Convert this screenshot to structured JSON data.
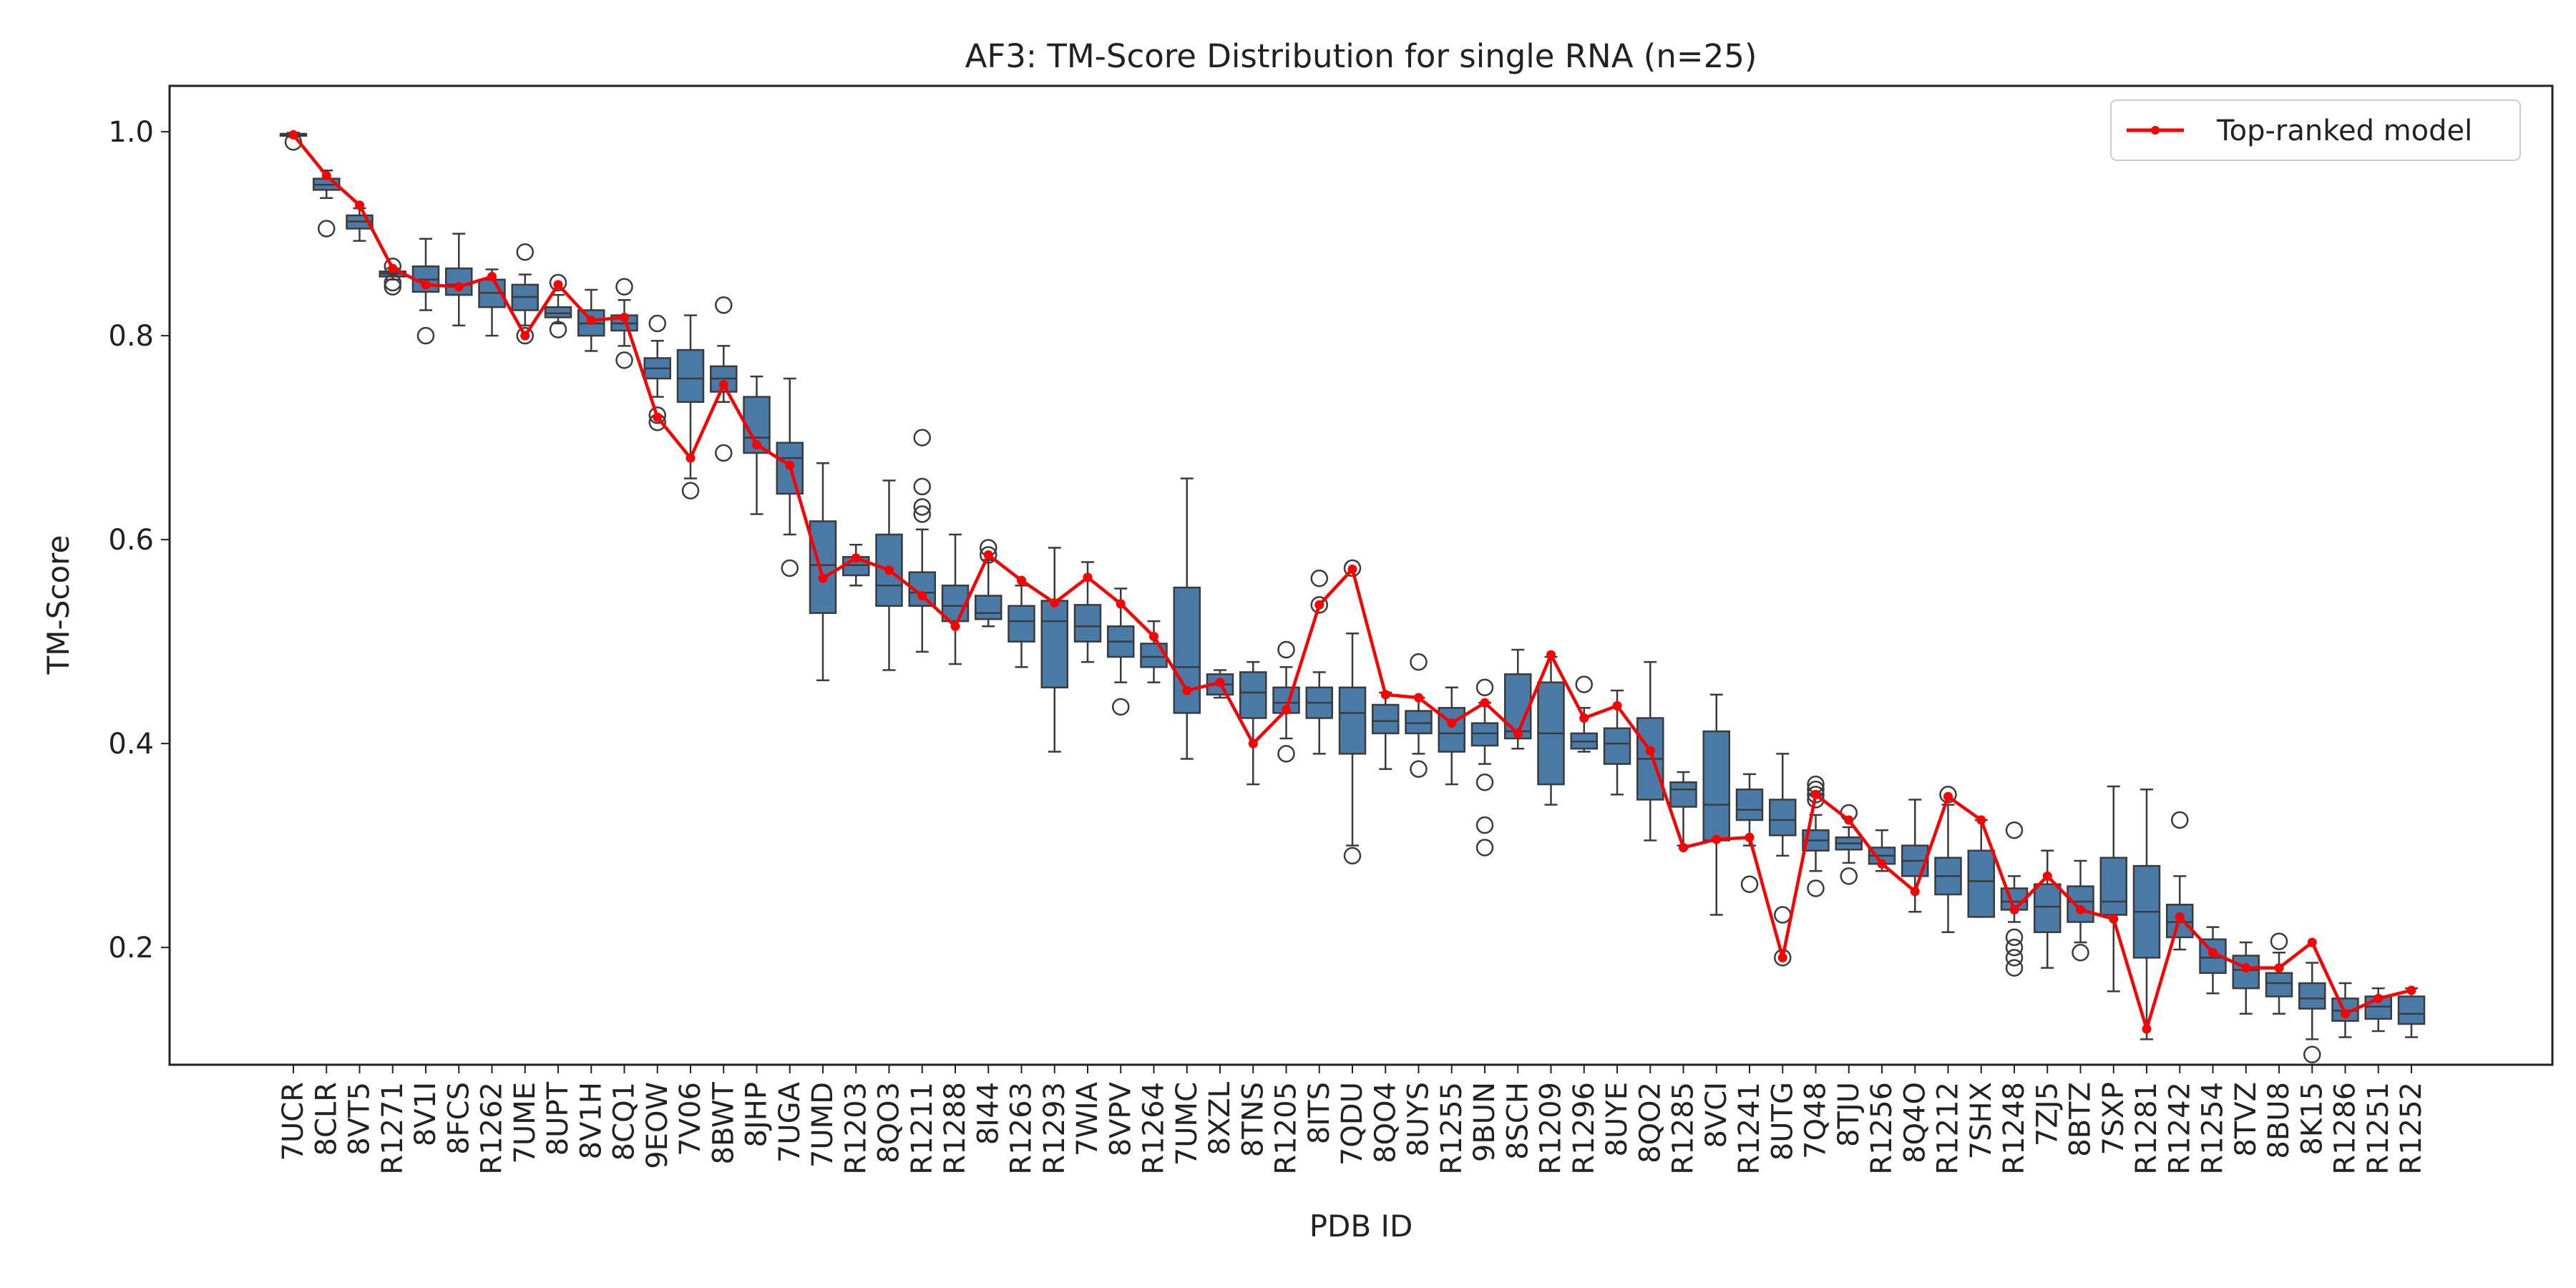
{
  "chart_data": {
    "type": "box",
    "title": "AF3: TM-Score Distribution for single RNA (n=25)",
    "xlabel": "PDB ID",
    "ylabel": "TM-Score",
    "ylim": [
      0.085,
      1.045
    ],
    "yticks": [
      0.2,
      0.4,
      0.6,
      0.8,
      1.0
    ],
    "ytick_labels": [
      "0.2",
      "0.4",
      "0.6",
      "0.8",
      "1.0"
    ],
    "grid": false,
    "legend": {
      "position": "top-right",
      "entries": [
        "Top-ranked model"
      ]
    },
    "colors": {
      "box": "#4a7ba7",
      "box_edge": "#3b3b3b",
      "line": "#ff0000",
      "frame": "#222222"
    },
    "categories": [
      "7UCR",
      "8CLR",
      "8VT5",
      "R1271",
      "8V1I",
      "8FCS",
      "R1262",
      "7UME",
      "8UPT",
      "8V1H",
      "8CQ1",
      "9EOW",
      "7V06",
      "8BWT",
      "8JHP",
      "7UGA",
      "7UMD",
      "R1203",
      "8QO3",
      "R1211",
      "R1288",
      "8I44",
      "R1263",
      "R1293",
      "7WIA",
      "8VPV",
      "R1264",
      "7UMC",
      "8XZL",
      "8TNS",
      "R1205",
      "8ITS",
      "7QDU",
      "8QO4",
      "8UYS",
      "R1255",
      "9BUN",
      "8SCH",
      "R1209",
      "R1296",
      "8UYE",
      "8QO2",
      "R1285",
      "8VCI",
      "R1241",
      "8UTG",
      "7Q48",
      "8TJU",
      "R1256",
      "8Q4O",
      "R1212",
      "7SHX",
      "R1248",
      "7ZJ5",
      "8BTZ",
      "7SXP",
      "R1281",
      "R1242",
      "R1254",
      "8TVZ",
      "8BU8",
      "8K15",
      "R1286",
      "R1251",
      "R1252"
    ],
    "boxes": [
      {
        "whislo": 0.995,
        "q1": 0.996,
        "med": 0.997,
        "q3": 0.998,
        "whishi": 0.999,
        "fliers": [
          0.99
        ]
      },
      {
        "whislo": 0.935,
        "q1": 0.943,
        "med": 0.948,
        "q3": 0.954,
        "whishi": 0.962,
        "fliers": [
          0.905
        ]
      },
      {
        "whislo": 0.893,
        "q1": 0.905,
        "med": 0.912,
        "q3": 0.918,
        "whishi": 0.925,
        "fliers": []
      },
      {
        "whislo": 0.855,
        "q1": 0.858,
        "med": 0.861,
        "q3": 0.863,
        "whishi": 0.866,
        "fliers": [
          0.868,
          0.852,
          0.848
        ]
      },
      {
        "whislo": 0.825,
        "q1": 0.843,
        "med": 0.855,
        "q3": 0.868,
        "whishi": 0.895,
        "fliers": [
          0.8
        ]
      },
      {
        "whislo": 0.81,
        "q1": 0.84,
        "med": 0.85,
        "q3": 0.866,
        "whishi": 0.9,
        "fliers": []
      },
      {
        "whislo": 0.8,
        "q1": 0.828,
        "med": 0.842,
        "q3": 0.855,
        "whishi": 0.865,
        "fliers": []
      },
      {
        "whislo": 0.81,
        "q1": 0.825,
        "med": 0.838,
        "q3": 0.85,
        "whishi": 0.86,
        "fliers": [
          0.882,
          0.8
        ]
      },
      {
        "whislo": 0.812,
        "q1": 0.818,
        "med": 0.822,
        "q3": 0.828,
        "whishi": 0.84,
        "fliers": [
          0.852,
          0.806
        ]
      },
      {
        "whislo": 0.785,
        "q1": 0.8,
        "med": 0.812,
        "q3": 0.825,
        "whishi": 0.845,
        "fliers": []
      },
      {
        "whislo": 0.79,
        "q1": 0.805,
        "med": 0.812,
        "q3": 0.82,
        "whishi": 0.835,
        "fliers": [
          0.848,
          0.776
        ]
      },
      {
        "whislo": 0.74,
        "q1": 0.758,
        "med": 0.768,
        "q3": 0.778,
        "whishi": 0.795,
        "fliers": [
          0.812,
          0.722,
          0.715
        ]
      },
      {
        "whislo": 0.66,
        "q1": 0.735,
        "med": 0.758,
        "q3": 0.786,
        "whishi": 0.82,
        "fliers": [
          0.648
        ]
      },
      {
        "whislo": 0.735,
        "q1": 0.745,
        "med": 0.758,
        "q3": 0.77,
        "whishi": 0.79,
        "fliers": [
          0.83,
          0.685
        ]
      },
      {
        "whislo": 0.625,
        "q1": 0.685,
        "med": 0.7,
        "q3": 0.74,
        "whishi": 0.76,
        "fliers": []
      },
      {
        "whislo": 0.605,
        "q1": 0.645,
        "med": 0.68,
        "q3": 0.695,
        "whishi": 0.758,
        "fliers": [
          0.572
        ]
      },
      {
        "whislo": 0.462,
        "q1": 0.528,
        "med": 0.575,
        "q3": 0.618,
        "whishi": 0.675,
        "fliers": []
      },
      {
        "whislo": 0.555,
        "q1": 0.565,
        "med": 0.575,
        "q3": 0.583,
        "whishi": 0.595,
        "fliers": []
      },
      {
        "whislo": 0.472,
        "q1": 0.535,
        "med": 0.555,
        "q3": 0.605,
        "whishi": 0.658,
        "fliers": []
      },
      {
        "whislo": 0.49,
        "q1": 0.535,
        "med": 0.548,
        "q3": 0.568,
        "whishi": 0.61,
        "fliers": [
          0.7,
          0.652,
          0.632,
          0.625
        ]
      },
      {
        "whislo": 0.478,
        "q1": 0.52,
        "med": 0.535,
        "q3": 0.555,
        "whishi": 0.605,
        "fliers": []
      },
      {
        "whislo": 0.515,
        "q1": 0.522,
        "med": 0.528,
        "q3": 0.545,
        "whishi": 0.58,
        "fliers": [
          0.592,
          0.585
        ]
      },
      {
        "whislo": 0.475,
        "q1": 0.5,
        "med": 0.52,
        "q3": 0.535,
        "whishi": 0.555,
        "fliers": []
      },
      {
        "whislo": 0.392,
        "q1": 0.455,
        "med": 0.52,
        "q3": 0.54,
        "whishi": 0.592,
        "fliers": []
      },
      {
        "whislo": 0.48,
        "q1": 0.5,
        "med": 0.515,
        "q3": 0.536,
        "whishi": 0.578,
        "fliers": []
      },
      {
        "whislo": 0.46,
        "q1": 0.485,
        "med": 0.5,
        "q3": 0.515,
        "whishi": 0.552,
        "fliers": [
          0.436
        ]
      },
      {
        "whislo": 0.46,
        "q1": 0.475,
        "med": 0.485,
        "q3": 0.498,
        "whishi": 0.52,
        "fliers": []
      },
      {
        "whislo": 0.385,
        "q1": 0.43,
        "med": 0.475,
        "q3": 0.553,
        "whishi": 0.66,
        "fliers": []
      },
      {
        "whislo": 0.445,
        "q1": 0.448,
        "med": 0.458,
        "q3": 0.468,
        "whishi": 0.472,
        "fliers": []
      },
      {
        "whislo": 0.36,
        "q1": 0.425,
        "med": 0.45,
        "q3": 0.47,
        "whishi": 0.48,
        "fliers": []
      },
      {
        "whislo": 0.405,
        "q1": 0.43,
        "med": 0.44,
        "q3": 0.455,
        "whishi": 0.475,
        "fliers": [
          0.492,
          0.39
        ]
      },
      {
        "whislo": 0.39,
        "q1": 0.425,
        "med": 0.44,
        "q3": 0.455,
        "whishi": 0.47,
        "fliers": [
          0.562,
          0.536
        ]
      },
      {
        "whislo": 0.3,
        "q1": 0.39,
        "med": 0.43,
        "q3": 0.455,
        "whishi": 0.508,
        "fliers": [
          0.572,
          0.29
        ]
      },
      {
        "whislo": 0.375,
        "q1": 0.41,
        "med": 0.422,
        "q3": 0.438,
        "whishi": 0.45,
        "fliers": []
      },
      {
        "whislo": 0.39,
        "q1": 0.41,
        "med": 0.42,
        "q3": 0.432,
        "whishi": 0.445,
        "fliers": [
          0.48,
          0.375
        ]
      },
      {
        "whislo": 0.36,
        "q1": 0.392,
        "med": 0.41,
        "q3": 0.435,
        "whishi": 0.455,
        "fliers": []
      },
      {
        "whislo": 0.38,
        "q1": 0.398,
        "med": 0.41,
        "q3": 0.42,
        "whishi": 0.44,
        "fliers": [
          0.455,
          0.362,
          0.32,
          0.298
        ]
      },
      {
        "whislo": 0.395,
        "q1": 0.405,
        "med": 0.412,
        "q3": 0.468,
        "whishi": 0.492,
        "fliers": []
      },
      {
        "whislo": 0.34,
        "q1": 0.36,
        "med": 0.41,
        "q3": 0.46,
        "whishi": 0.485,
        "fliers": []
      },
      {
        "whislo": 0.392,
        "q1": 0.395,
        "med": 0.402,
        "q3": 0.41,
        "whishi": 0.435,
        "fliers": [
          0.458
        ]
      },
      {
        "whislo": 0.35,
        "q1": 0.38,
        "med": 0.4,
        "q3": 0.415,
        "whishi": 0.452,
        "fliers": []
      },
      {
        "whislo": 0.305,
        "q1": 0.345,
        "med": 0.385,
        "q3": 0.425,
        "whishi": 0.48,
        "fliers": []
      },
      {
        "whislo": 0.3,
        "q1": 0.338,
        "med": 0.355,
        "q3": 0.362,
        "whishi": 0.372,
        "fliers": []
      },
      {
        "whislo": 0.232,
        "q1": 0.305,
        "med": 0.34,
        "q3": 0.412,
        "whishi": 0.448,
        "fliers": []
      },
      {
        "whislo": 0.3,
        "q1": 0.325,
        "med": 0.335,
        "q3": 0.355,
        "whishi": 0.37,
        "fliers": [
          0.262
        ]
      },
      {
        "whislo": 0.29,
        "q1": 0.31,
        "med": 0.325,
        "q3": 0.345,
        "whishi": 0.39,
        "fliers": [
          0.232,
          0.19
        ]
      },
      {
        "whislo": 0.275,
        "q1": 0.295,
        "med": 0.305,
        "q3": 0.315,
        "whishi": 0.33,
        "fliers": [
          0.36,
          0.355,
          0.35,
          0.345,
          0.258
        ]
      },
      {
        "whislo": 0.283,
        "q1": 0.296,
        "med": 0.302,
        "q3": 0.308,
        "whishi": 0.318,
        "fliers": [
          0.332,
          0.27
        ]
      },
      {
        "whislo": 0.275,
        "q1": 0.282,
        "med": 0.29,
        "q3": 0.298,
        "whishi": 0.315,
        "fliers": []
      },
      {
        "whislo": 0.235,
        "q1": 0.27,
        "med": 0.285,
        "q3": 0.3,
        "whishi": 0.345,
        "fliers": []
      },
      {
        "whislo": 0.215,
        "q1": 0.252,
        "med": 0.27,
        "q3": 0.288,
        "whishi": 0.34,
        "fliers": [
          0.35
        ]
      },
      {
        "whislo": 0.23,
        "q1": 0.23,
        "med": 0.265,
        "q3": 0.295,
        "whishi": 0.325,
        "fliers": []
      },
      {
        "whislo": 0.225,
        "q1": 0.237,
        "med": 0.245,
        "q3": 0.258,
        "whishi": 0.27,
        "fliers": [
          0.315,
          0.21,
          0.2,
          0.19,
          0.18
        ]
      },
      {
        "whislo": 0.18,
        "q1": 0.215,
        "med": 0.24,
        "q3": 0.262,
        "whishi": 0.295,
        "fliers": []
      },
      {
        "whislo": 0.205,
        "q1": 0.225,
        "med": 0.245,
        "q3": 0.26,
        "whishi": 0.285,
        "fliers": [
          0.195
        ]
      },
      {
        "whislo": 0.157,
        "q1": 0.232,
        "med": 0.245,
        "q3": 0.288,
        "whishi": 0.358,
        "fliers": []
      },
      {
        "whislo": 0.11,
        "q1": 0.19,
        "med": 0.235,
        "q3": 0.28,
        "whishi": 0.355,
        "fliers": []
      },
      {
        "whislo": 0.198,
        "q1": 0.21,
        "med": 0.225,
        "q3": 0.242,
        "whishi": 0.27,
        "fliers": [
          0.325
        ]
      },
      {
        "whislo": 0.155,
        "q1": 0.175,
        "med": 0.19,
        "q3": 0.208,
        "whishi": 0.22,
        "fliers": []
      },
      {
        "whislo": 0.135,
        "q1": 0.16,
        "med": 0.178,
        "q3": 0.192,
        "whishi": 0.205,
        "fliers": []
      },
      {
        "whislo": 0.135,
        "q1": 0.152,
        "med": 0.165,
        "q3": 0.175,
        "whishi": 0.195,
        "fliers": [
          0.206
        ]
      },
      {
        "whislo": 0.11,
        "q1": 0.14,
        "med": 0.15,
        "q3": 0.165,
        "whishi": 0.185,
        "fliers": [
          0.095
        ]
      },
      {
        "whislo": 0.112,
        "q1": 0.128,
        "med": 0.138,
        "q3": 0.15,
        "whishi": 0.165,
        "fliers": []
      },
      {
        "whislo": 0.118,
        "q1": 0.13,
        "med": 0.142,
        "q3": 0.152,
        "whishi": 0.16,
        "fliers": []
      },
      {
        "whislo": 0.112,
        "q1": 0.125,
        "med": 0.135,
        "q3": 0.152,
        "whishi": 0.16,
        "fliers": []
      }
    ],
    "series": [
      {
        "name": "Top-ranked model",
        "values": [
          0.997,
          0.957,
          0.928,
          0.866,
          0.85,
          0.848,
          0.858,
          0.8,
          0.85,
          0.815,
          0.818,
          0.72,
          0.68,
          0.752,
          0.693,
          0.673,
          0.562,
          0.582,
          0.57,
          0.545,
          0.515,
          0.585,
          0.56,
          0.538,
          0.563,
          0.537,
          0.505,
          0.452,
          0.46,
          0.4,
          0.433,
          0.536,
          0.571,
          0.448,
          0.445,
          0.42,
          0.44,
          0.41,
          0.487,
          0.425,
          0.437,
          0.393,
          0.298,
          0.306,
          0.308,
          0.19,
          0.35,
          0.325,
          0.282,
          0.255,
          0.348,
          0.325,
          0.237,
          0.27,
          0.237,
          0.228,
          0.12,
          0.23,
          0.195,
          0.18,
          0.18,
          0.205,
          0.135,
          0.15,
          0.158
        ]
      }
    ]
  }
}
